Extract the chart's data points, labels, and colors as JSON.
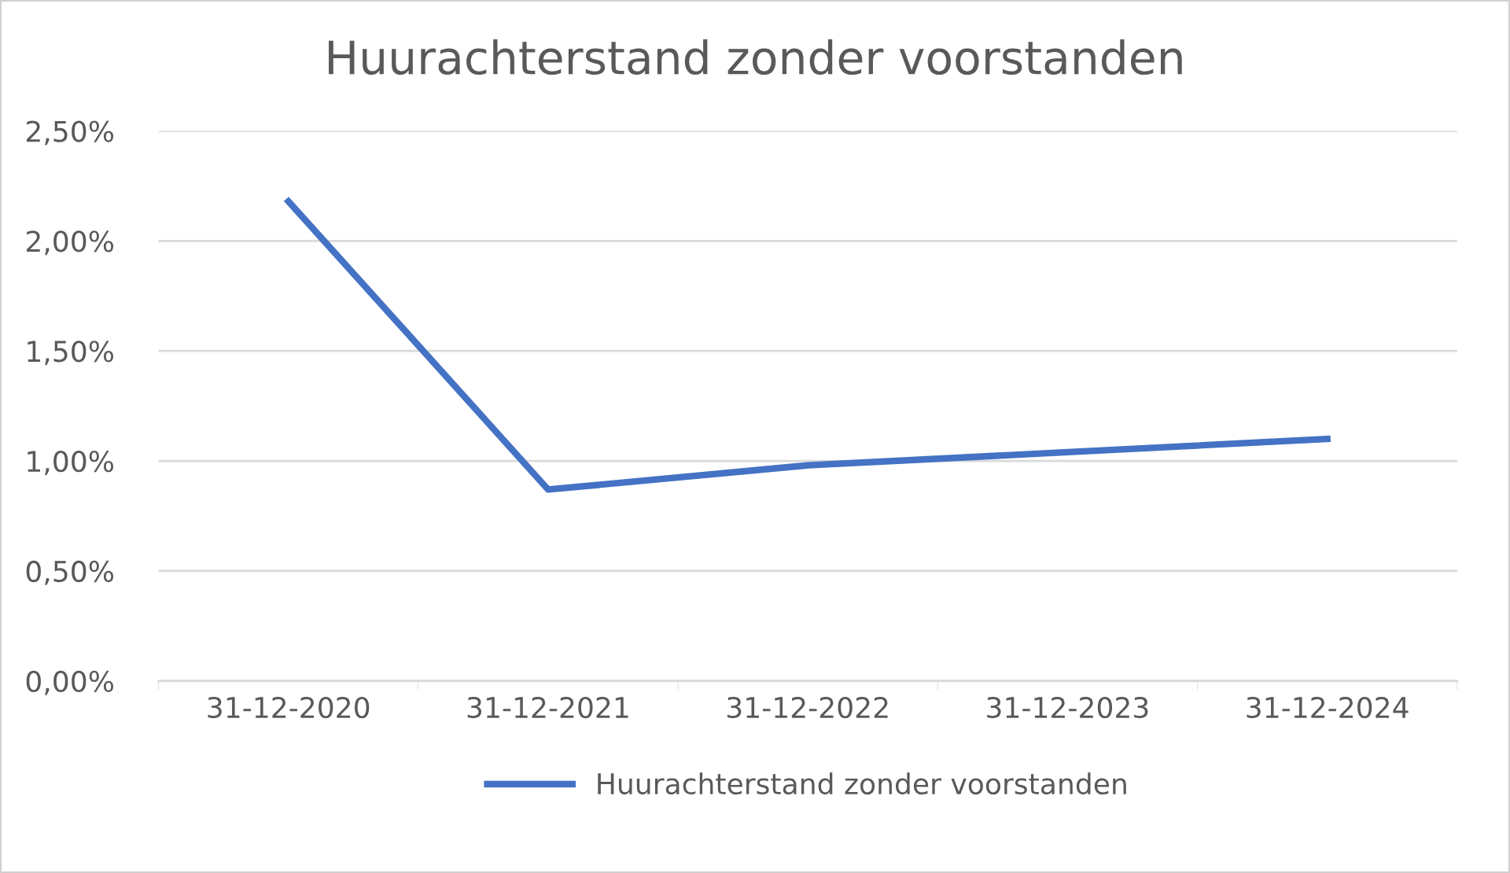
{
  "chart_data": {
    "type": "line",
    "title": "Huurachterstand zonder voorstanden",
    "categories": [
      "31-12-2020",
      "31-12-2021",
      "31-12-2022",
      "31-12-2023",
      "31-12-2024"
    ],
    "series": [
      {
        "name": "Huurachterstand zonder voorstanden",
        "color": "#4472c4",
        "values": [
          2.18,
          0.87,
          0.98,
          1.04,
          1.1
        ]
      }
    ],
    "ylim": [
      0,
      2.5
    ],
    "yticks": [
      {
        "value": 0,
        "label": "0,00%"
      },
      {
        "value": 0.5,
        "label": "0,50%"
      },
      {
        "value": 1,
        "label": "1,00%"
      },
      {
        "value": 1.5,
        "label": "1,50%"
      },
      {
        "value": 2,
        "label": "2,00%"
      },
      {
        "value": 2.5,
        "label": "2,50%"
      }
    ],
    "grid": "y",
    "legend": "bottom",
    "marker": "none",
    "line_style": "solid"
  }
}
